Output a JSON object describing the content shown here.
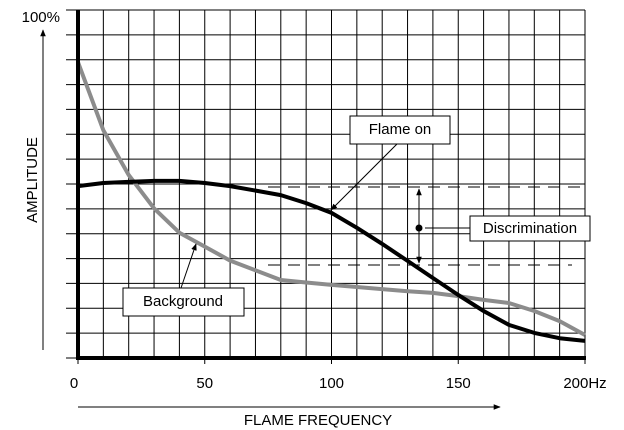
{
  "chart_data": {
    "type": "line",
    "x_label": "FLAME FREQUENCY",
    "y_label": "AMPLITUDE",
    "x": [
      0,
      10,
      20,
      30,
      40,
      50,
      60,
      80,
      90,
      100,
      110,
      120,
      130,
      140,
      150,
      160,
      170,
      180,
      190,
      200
    ],
    "series": [
      {
        "name": "Flame on",
        "color": "#000000",
        "values": [
          49.4,
          50.3,
          50.6,
          50.9,
          50.9,
          50.3,
          49.4,
          46.8,
          44.5,
          41.7,
          37.4,
          32.8,
          27.9,
          23,
          18.1,
          13.5,
          9.5,
          7.2,
          5.7,
          4.9
        ]
      },
      {
        "name": "Background",
        "color": "#8c8c8c",
        "values": [
          85,
          65.5,
          52.6,
          43,
          36,
          32,
          28,
          22.4,
          21.7,
          21,
          20.4,
          19.8,
          19.2,
          18.7,
          17.8,
          16.7,
          15.8,
          13.5,
          10.6,
          6.6
        ]
      }
    ],
    "annotations": [
      "Discrimination"
    ],
    "xlim": [
      0,
      200
    ],
    "ylim": [
      0,
      100
    ],
    "xticks": [
      0,
      50,
      100,
      150,
      {
        "value": 200,
        "label": "200Hz"
      }
    ],
    "yticks": [
      {
        "value": 100,
        "label": "100%"
      }
    ],
    "grid": {
      "x": 20,
      "y": 14
    }
  }
}
